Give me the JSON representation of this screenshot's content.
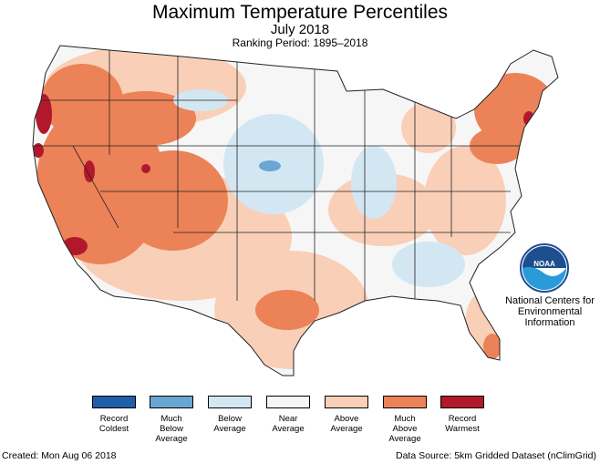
{
  "title": "Maximum Temperature Percentiles",
  "subtitle": "July 2018",
  "ranking_period": "Ranking Period: 1895–2018",
  "legend": [
    {
      "label": "Record\nColdest",
      "color": "#1f5fa8"
    },
    {
      "label": "Much\nBelow\nAverage",
      "color": "#6aa6d3"
    },
    {
      "label": "Below\nAverage",
      "color": "#d3e7f3"
    },
    {
      "label": "Near\nAverage",
      "color": "#f6f6f6"
    },
    {
      "label": "Above\nAverage",
      "color": "#f9cfb8"
    },
    {
      "label": "Much\nAbove\nAverage",
      "color": "#ec8257"
    },
    {
      "label": "Record\nWarmest",
      "color": "#b2182b"
    }
  ],
  "logo": {
    "text": "NOAA"
  },
  "agency": "National Centers for\nEnvironmental\nInformation",
  "created": "Created: Mon Aug 06 2018",
  "data_source": "Data Source: 5km Gridded Dataset (nClimGrid)"
}
